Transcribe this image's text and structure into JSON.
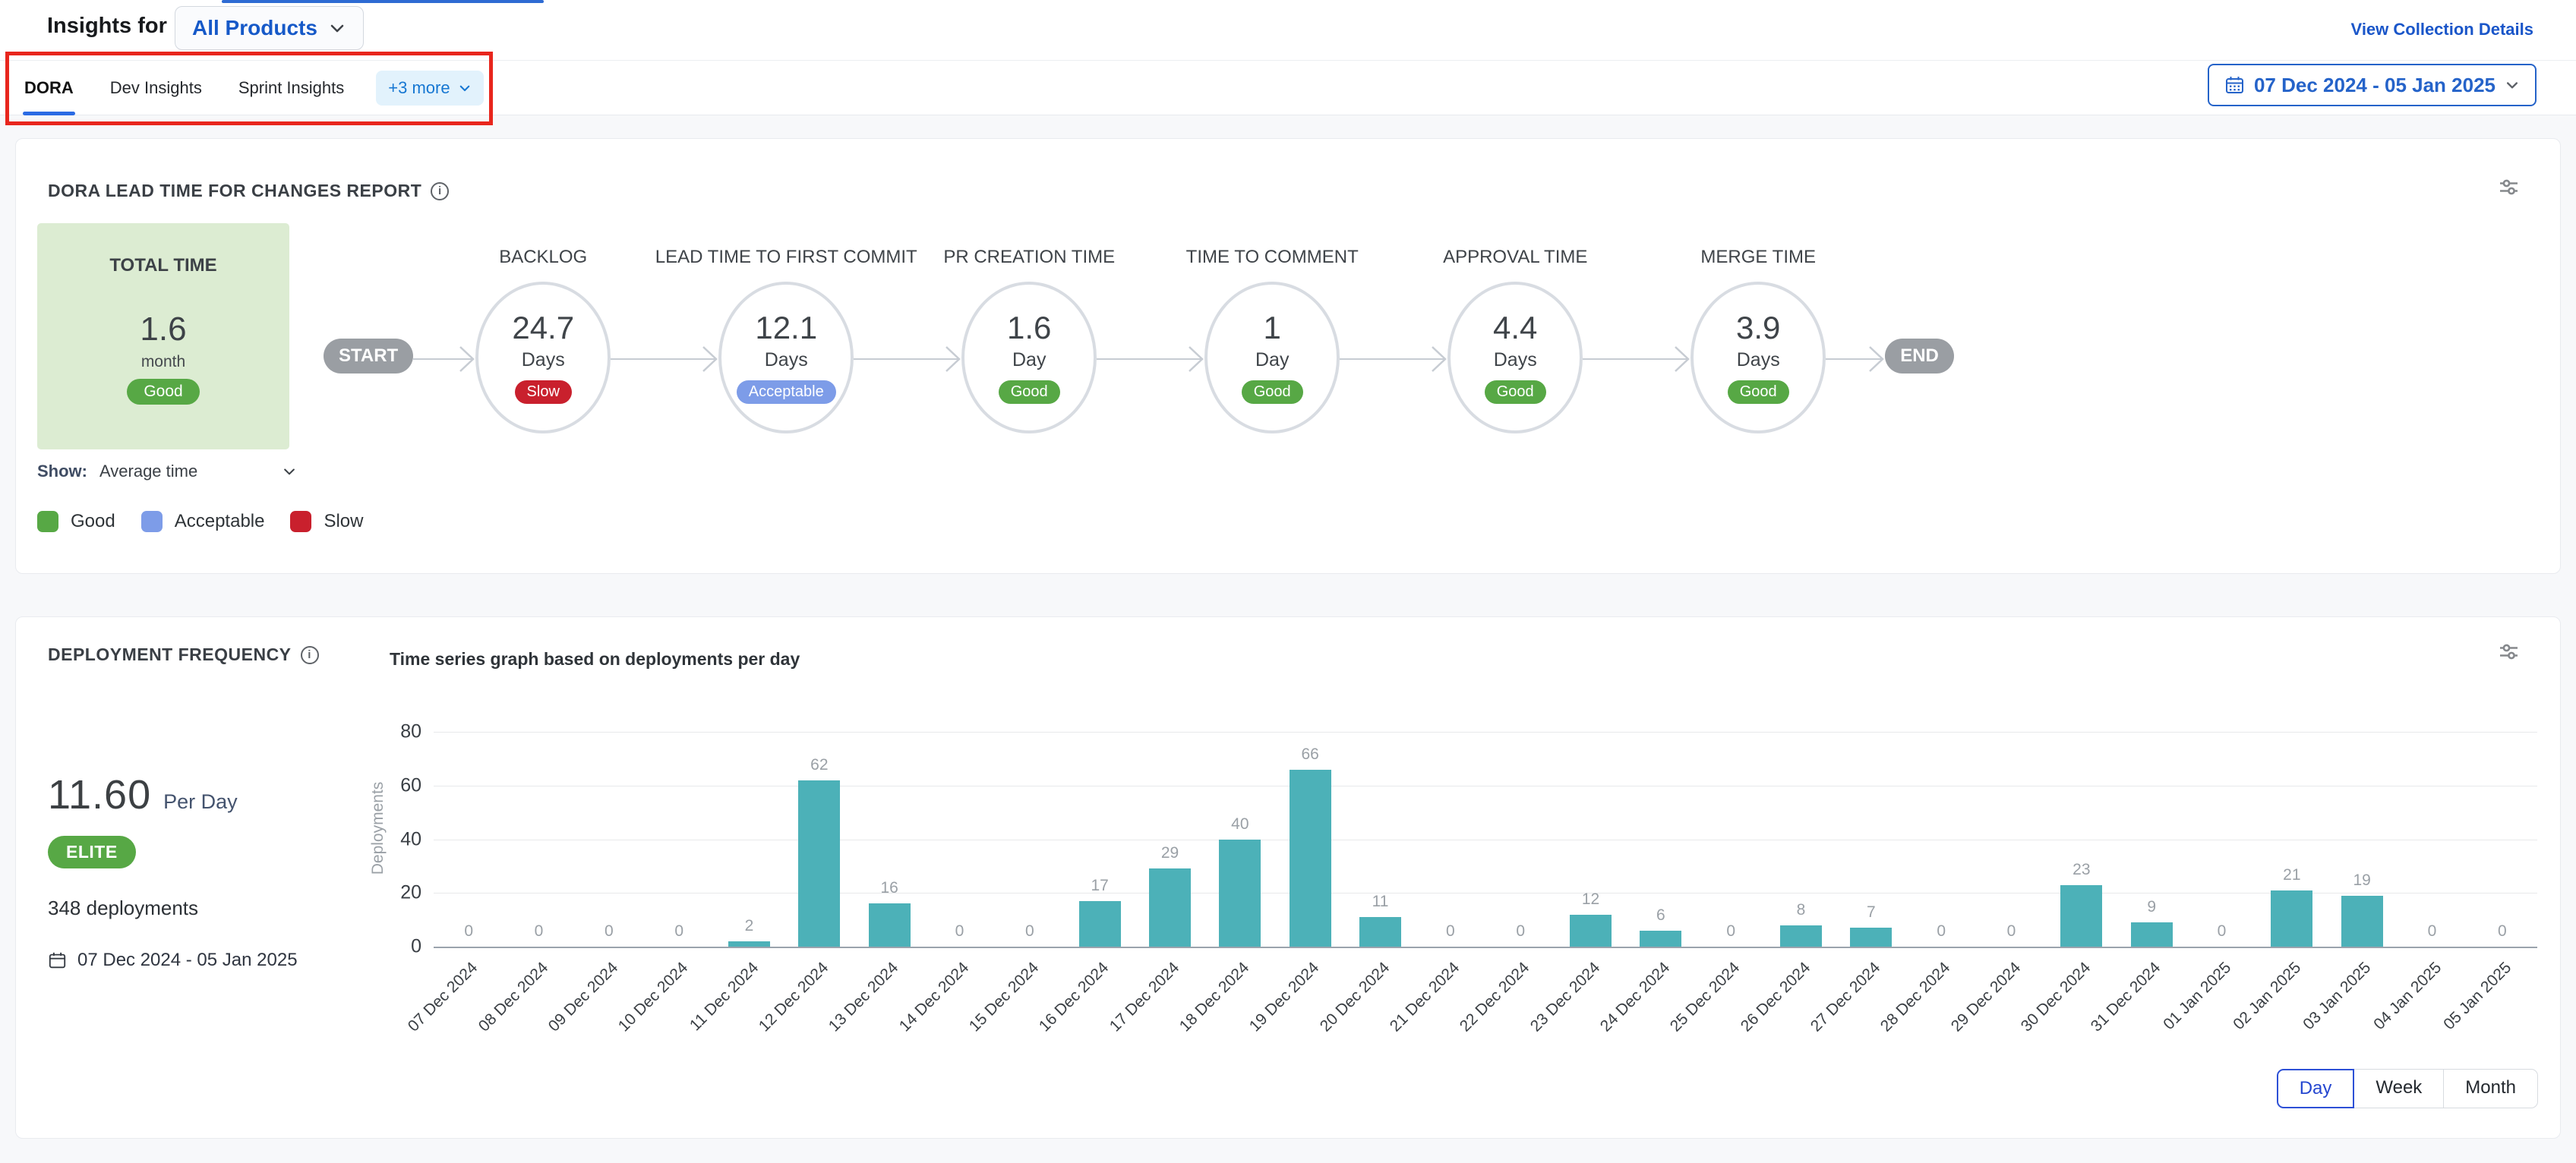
{
  "header": {
    "title": "Insights for",
    "product": "All Products",
    "view_details": "View Collection Details"
  },
  "tabs": {
    "items": [
      {
        "label": "DORA",
        "active": true
      },
      {
        "label": "Dev Insights",
        "active": false
      },
      {
        "label": "Sprint Insights",
        "active": false
      }
    ],
    "more_label": "+3 more"
  },
  "date_range": "07 Dec 2024 - 05 Jan 2025",
  "icons": {
    "info": "i"
  },
  "status_colors": {
    "Good": "#57a845",
    "Acceptable": "#7d9ce8",
    "Slow": "#c9202d"
  },
  "annotation": {
    "highlight_box_color": "#e8261d"
  },
  "lead_time_card": {
    "title": "DORA LEAD TIME FOR CHANGES REPORT",
    "total": {
      "label": "TOTAL TIME",
      "value": "1.6",
      "unit": "month",
      "status": "Good"
    },
    "start_label": "START",
    "end_label": "END",
    "stages": [
      {
        "name": "BACKLOG",
        "value": "24.7",
        "unit": "Days",
        "status": "Slow"
      },
      {
        "name": "LEAD TIME TO FIRST COMMIT",
        "value": "12.1",
        "unit": "Days",
        "status": "Acceptable"
      },
      {
        "name": "PR CREATION TIME",
        "value": "1.6",
        "unit": "Day",
        "status": "Good"
      },
      {
        "name": "TIME TO COMMENT",
        "value": "1",
        "unit": "Day",
        "status": "Good"
      },
      {
        "name": "APPROVAL TIME",
        "value": "4.4",
        "unit": "Days",
        "status": "Good"
      },
      {
        "name": "MERGE TIME",
        "value": "3.9",
        "unit": "Days",
        "status": "Good"
      }
    ],
    "show_label": "Show:",
    "show_value": "Average time",
    "legend": [
      {
        "label": "Good",
        "color": "#57a845"
      },
      {
        "label": "Acceptable",
        "color": "#7d9ce8"
      },
      {
        "label": "Slow",
        "color": "#c9202d"
      }
    ]
  },
  "deployment_card": {
    "title": "DEPLOYMENT FREQUENCY",
    "chart_title": "Time series graph based on deployments per day",
    "rate_value": "11.60",
    "rate_unit": "Per Day",
    "tier": "ELITE",
    "total_deployments": "348 deployments",
    "date_range": "07 Dec 2024 - 05 Jan 2025",
    "toggle": {
      "options": [
        "Day",
        "Week",
        "Month"
      ],
      "active": "Day"
    }
  },
  "chart_data": {
    "type": "bar",
    "title": "Time series graph based on deployments per day",
    "xlabel": "",
    "ylabel": "Deployments",
    "ylim": [
      0,
      80
    ],
    "yticks": [
      80,
      60,
      40,
      20,
      0
    ],
    "grid": true,
    "bar_color": "#4cb1b8",
    "categories": [
      "07 Dec 2024",
      "08 Dec 2024",
      "09 Dec 2024",
      "10 Dec 2024",
      "11 Dec 2024",
      "12 Dec 2024",
      "13 Dec 2024",
      "14 Dec 2024",
      "15 Dec 2024",
      "16 Dec 2024",
      "17 Dec 2024",
      "18 Dec 2024",
      "19 Dec 2024",
      "20 Dec 2024",
      "21 Dec 2024",
      "22 Dec 2024",
      "23 Dec 2024",
      "24 Dec 2024",
      "25 Dec 2024",
      "26 Dec 2024",
      "27 Dec 2024",
      "28 Dec 2024",
      "29 Dec 2024",
      "30 Dec 2024",
      "31 Dec 2024",
      "01 Jan 2025",
      "02 Jan 2025",
      "03 Jan 2025",
      "04 Jan 2025",
      "05 Jan 2025"
    ],
    "values": [
      0,
      0,
      0,
      0,
      2,
      62,
      16,
      0,
      0,
      17,
      29,
      40,
      66,
      11,
      0,
      0,
      12,
      6,
      0,
      8,
      7,
      0,
      0,
      23,
      9,
      0,
      21,
      19,
      0,
      0
    ]
  }
}
